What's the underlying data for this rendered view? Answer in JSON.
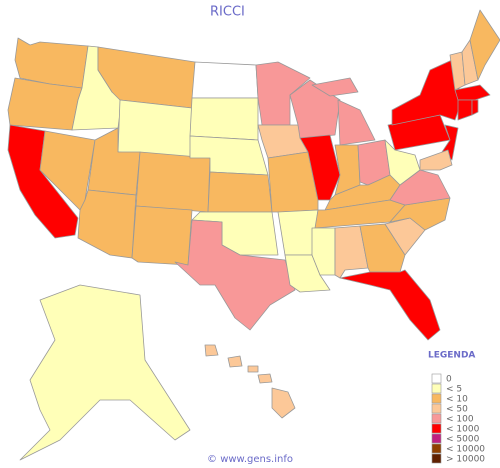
{
  "title": "RICCI",
  "legend": {
    "title": "LEGENDA",
    "items": [
      {
        "label": "0",
        "color": "#ffffff"
      },
      {
        "label": "< 5",
        "color": "#ffffb8"
      },
      {
        "label": "< 10",
        "color": "#f8b860"
      },
      {
        "label": "< 50",
        "color": "#fcc898"
      },
      {
        "label": "< 100",
        "color": "#f89898"
      },
      {
        "label": "< 1000",
        "color": "#ff0000"
      },
      {
        "label": "< 5000",
        "color": "#c02080"
      },
      {
        "label": "< 10000",
        "color": "#904000"
      },
      {
        "label": "> 10000",
        "color": "#602000"
      }
    ]
  },
  "footer": "© www.gens.info"
}
